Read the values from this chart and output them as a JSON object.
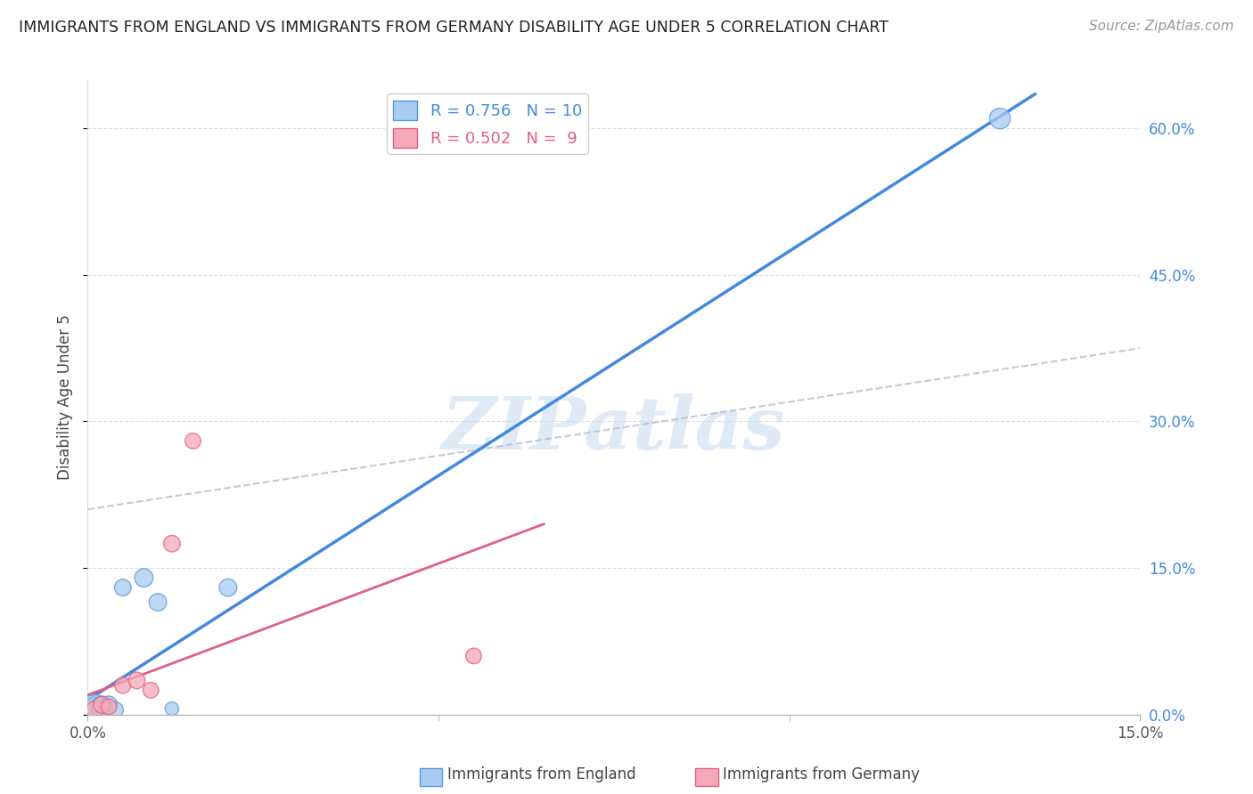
{
  "title": "IMMIGRANTS FROM ENGLAND VS IMMIGRANTS FROM GERMANY DISABILITY AGE UNDER 5 CORRELATION CHART",
  "source": "Source: ZipAtlas.com",
  "ylabel": "Disability Age Under 5",
  "xlabel_legend1": "Immigrants from England",
  "xlabel_legend2": "Immigrants from Germany",
  "R1": 0.756,
  "N1": 10,
  "R2": 0.502,
  "N2": 9,
  "xlim": [
    0,
    0.15
  ],
  "ylim": [
    0,
    0.65
  ],
  "yticks": [
    0.0,
    0.15,
    0.3,
    0.45,
    0.6
  ],
  "xticks": [
    0.0,
    0.15
  ],
  "xtick_minor": [
    0.05,
    0.1
  ],
  "england_x": [
    0.001,
    0.002,
    0.003,
    0.004,
    0.005,
    0.008,
    0.01,
    0.012,
    0.02,
    0.13
  ],
  "england_y": [
    0.005,
    0.008,
    0.01,
    0.005,
    0.13,
    0.14,
    0.115,
    0.006,
    0.13,
    0.61
  ],
  "england_sizes": [
    600,
    300,
    200,
    150,
    180,
    220,
    200,
    120,
    200,
    280
  ],
  "germany_x": [
    0.001,
    0.002,
    0.003,
    0.005,
    0.007,
    0.009,
    0.012,
    0.015,
    0.055
  ],
  "germany_y": [
    0.005,
    0.01,
    0.008,
    0.03,
    0.035,
    0.025,
    0.175,
    0.28,
    0.06
  ],
  "germany_sizes": [
    200,
    180,
    160,
    170,
    180,
    160,
    180,
    160,
    160
  ],
  "eng_line_x0": 0.0,
  "eng_line_y0": 0.015,
  "eng_line_x1": 0.135,
  "eng_line_y1": 0.635,
  "ger_line_x0": 0.0,
  "ger_line_y0": 0.02,
  "ger_line_x1": 0.065,
  "ger_line_y1": 0.195,
  "diag_line_x0": 0.0,
  "diag_line_y0": 0.21,
  "diag_line_x1": 0.15,
  "diag_line_y1": 0.375,
  "color_england": "#A8CCF0",
  "color_germany": "#F4A8B8",
  "color_england_edge": "#5599DD",
  "color_germany_edge": "#E06080",
  "color_england_line": "#4488DD",
  "color_germany_line": "#E06080",
  "color_diag_line": "#BBBBCC",
  "watermark_text": "ZIPatlas",
  "watermark_color": "#C8DCF0",
  "background_color": "#FFFFFF"
}
